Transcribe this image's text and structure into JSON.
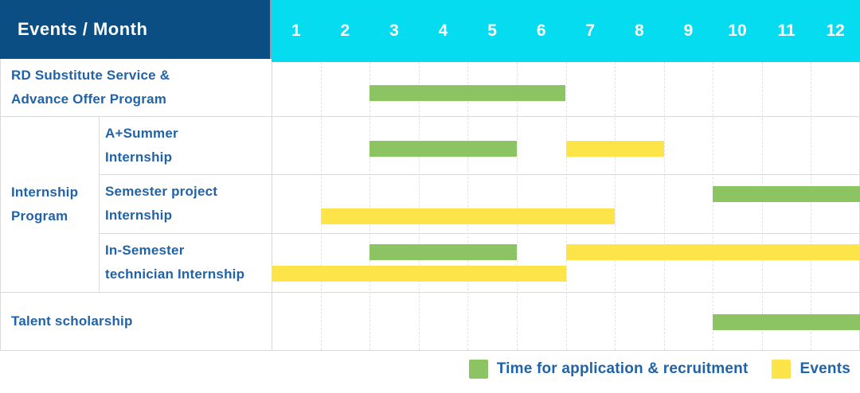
{
  "header": {
    "title": "Events / Month",
    "months": [
      "1",
      "2",
      "3",
      "4",
      "5",
      "6",
      "7",
      "8",
      "9",
      "10",
      "11",
      "12"
    ]
  },
  "colors": {
    "header_navy": "#0a4e84",
    "header_cyan": "#06dcf0",
    "bar_green": "#8cc463",
    "bar_yellow": "#fde549",
    "label_blue": "#2063a8",
    "grid_line": "#d9d9d9"
  },
  "legend": {
    "items": [
      {
        "color_key": "green",
        "label": "Time for application & recruitment"
      },
      {
        "color_key": "yellow",
        "label": "Events"
      }
    ]
  },
  "chart_data": {
    "type": "table",
    "variant": "gantt_schedule",
    "title": "Events / Month",
    "x_ticks": [
      "1",
      "2",
      "3",
      "4",
      "5",
      "6",
      "7",
      "8",
      "9",
      "10",
      "11",
      "12"
    ],
    "x_range": [
      1,
      12
    ],
    "grid": true,
    "legend_position": "bottom-right",
    "series_meaning": {
      "green": "Time for application & recruitment",
      "yellow": "Events"
    },
    "group_label_lines": [
      "Internship",
      "Program"
    ],
    "rows": [
      {
        "id": "rd-substitute-service-advance-offer-program",
        "group": "",
        "label_lines": [
          "RD Substitute Service &",
          "Advance Offer Program"
        ],
        "tracks": [
          [
            {
              "color": "green",
              "start_month": 3,
              "end_month": 6
            }
          ]
        ]
      },
      {
        "id": "a-plus-summer-internship",
        "group": "Internship Program",
        "label_lines": [
          "A+Summer",
          "Internship"
        ],
        "tracks": [
          [
            {
              "color": "green",
              "start_month": 3,
              "end_month": 5
            },
            {
              "color": "yellow",
              "start_month": 7,
              "end_month": 8
            }
          ]
        ]
      },
      {
        "id": "semester-project-internship",
        "group": "Internship Program",
        "label_lines": [
          "Semester project",
          "Internship"
        ],
        "tracks": [
          [
            {
              "color": "green",
              "start_month": 10,
              "end_month": 12
            }
          ],
          [
            {
              "color": "yellow",
              "start_month": 2,
              "end_month": 7
            }
          ]
        ]
      },
      {
        "id": "in-semester-technician-internship",
        "group": "Internship Program",
        "label_lines": [
          "In-Semester",
          "technician Internship"
        ],
        "tracks": [
          [
            {
              "color": "green",
              "start_month": 3,
              "end_month": 5
            },
            {
              "color": "yellow",
              "start_month": 7,
              "end_month": 12
            }
          ],
          [
            {
              "color": "yellow",
              "start_month": 1,
              "end_month": 6
            }
          ]
        ]
      },
      {
        "id": "talent-scholarship",
        "group": "",
        "label_lines": [
          "Talent scholarship"
        ],
        "tracks": [
          [
            {
              "color": "green",
              "start_month": 10,
              "end_month": 12
            }
          ]
        ]
      }
    ]
  }
}
